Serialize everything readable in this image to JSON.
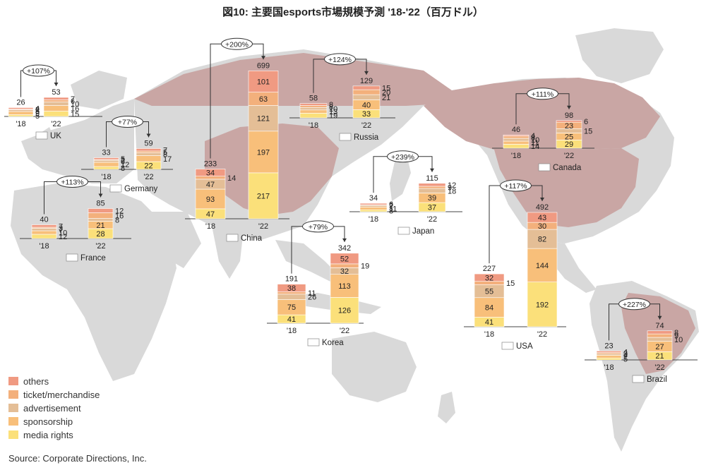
{
  "chart_data": {
    "type": "bar",
    "title": "図10: 主要国esports市場規模予測 '18-'22（百万ドル）",
    "source": "Source: Corporate Directions, Inc.",
    "colors": {
      "others": "#f09a82",
      "ticket": "#f3b07c",
      "advertisement": "#e4be96",
      "sponsorship": "#f8bf7a",
      "media": "#fbe07a",
      "land": "#d9d9d9",
      "focus": "#c9a6a4"
    },
    "legend": [
      {
        "key": "others",
        "label": "others"
      },
      {
        "key": "ticket",
        "label": "ticket/merchandise"
      },
      {
        "key": "advertisement",
        "label": "advertisement"
      },
      {
        "key": "sponsorship",
        "label": "sponsorship"
      },
      {
        "key": "media",
        "label": "media rights"
      }
    ],
    "countries": [
      {
        "name": "UK",
        "growth": "+107%",
        "years": [
          "'18",
          "'22"
        ],
        "bars": [
          {
            "total": "26",
            "values": {
              "media": 5,
              "sponsorship": 9,
              "advertisement": 5,
              "ticket": 2,
              "others": 4
            }
          },
          {
            "total": "53",
            "values": {
              "media": 15,
              "sponsorship": 16,
              "advertisement": 10,
              "ticket": 6,
              "others": 7
            }
          }
        ]
      },
      {
        "name": "Germany",
        "growth": "+77%",
        "years": [
          "'18",
          "'22"
        ],
        "bars": [
          {
            "total": "33",
            "values": {
              "media": 8,
              "sponsorship": 12,
              "advertisement": 6,
              "ticket": 2,
              "others": 5
            }
          },
          {
            "total": "59",
            "values": {
              "media": 22,
              "sponsorship": 17,
              "advertisement": 8,
              "ticket": 5,
              "others": 7
            }
          }
        ]
      },
      {
        "name": "France",
        "growth": "+113%",
        "years": [
          "'18",
          "'22"
        ],
        "bars": [
          {
            "total": "40",
            "values": {
              "media": 12,
              "sponsorship": 10,
              "advertisement": 7,
              "ticket": 3,
              "others": 7
            }
          },
          {
            "total": "85",
            "values": {
              "media": 28,
              "sponsorship": 21,
              "advertisement": 8,
              "ticket": 16,
              "others": 12
            }
          }
        ]
      },
      {
        "name": "China",
        "growth": "+200%",
        "years": [
          "'18",
          "'22"
        ],
        "bars": [
          {
            "total": "233",
            "values": {
              "media": 47,
              "sponsorship": 93,
              "advertisement": 47,
              "ticket": 14,
              "others": 34
            }
          },
          {
            "total": "699",
            "values": {
              "media": 217,
              "sponsorship": 197,
              "advertisement": 121,
              "ticket": 63,
              "others": 101
            }
          }
        ]
      },
      {
        "name": "Russia",
        "growth": "+124%",
        "years": [
          "'18",
          "'22"
        ],
        "bars": [
          {
            "total": "58",
            "values": {
              "media": 19,
              "sponsorship": 13,
              "advertisement": 10,
              "ticket": 8,
              "others": 8
            }
          },
          {
            "total": "129",
            "values": {
              "media": 33,
              "sponsorship": 40,
              "advertisement": 21,
              "ticket": 20,
              "others": 15
            }
          }
        ]
      },
      {
        "name": "Japan",
        "growth": "+239%",
        "years": [
          "'18",
          "'22"
        ],
        "bars": [
          {
            "total": "34",
            "values": {
              "media": 8,
              "sponsorship": 11,
              "advertisement": 7,
              "ticket": 2,
              "others": 6
            }
          },
          {
            "total": "115",
            "values": {
              "media": 37,
              "sponsorship": 39,
              "advertisement": 18,
              "ticket": 9,
              "others": 12
            }
          }
        ]
      },
      {
        "name": "Korea",
        "growth": "+79%",
        "years": [
          "'18",
          "'22"
        ],
        "bars": [
          {
            "total": "191",
            "values": {
              "media": 41,
              "sponsorship": 75,
              "advertisement": 26,
              "ticket": 11,
              "others": 38
            }
          },
          {
            "total": "342",
            "values": {
              "media": 126,
              "sponsorship": 113,
              "advertisement": 32,
              "ticket": 19,
              "others": 52
            }
          }
        ]
      },
      {
        "name": "Canada",
        "growth": "+111%",
        "years": [
          "'18",
          "'22"
        ],
        "bars": [
          {
            "total": "46",
            "values": {
              "media": 14,
              "sponsorship": 11,
              "advertisement": 10,
              "ticket": 8,
              "others": 4
            }
          },
          {
            "total": "98",
            "values": {
              "media": 29,
              "sponsorship": 25,
              "advertisement": 15,
              "ticket": 23,
              "others": 6
            }
          }
        ]
      },
      {
        "name": "USA",
        "growth": "+117%",
        "years": [
          "'18",
          "'22"
        ],
        "bars": [
          {
            "total": "227",
            "values": {
              "media": 41,
              "sponsorship": 84,
              "advertisement": 55,
              "ticket": 15,
              "others": 32
            }
          },
          {
            "total": "492",
            "values": {
              "media": 192,
              "sponsorship": 144,
              "advertisement": 82,
              "ticket": 30,
              "others": 43
            }
          }
        ]
      },
      {
        "name": "Brazil",
        "growth": "+227%",
        "years": [
          "'18",
          "'22"
        ],
        "bars": [
          {
            "total": "23",
            "values": {
              "media": 5,
              "sponsorship": 7,
              "advertisement": 4,
              "ticket": 3,
              "others": 4
            }
          },
          {
            "total": "74",
            "values": {
              "media": 21,
              "sponsorship": 27,
              "advertisement": 10,
              "ticket": 9,
              "others": 8
            }
          }
        ]
      }
    ]
  }
}
